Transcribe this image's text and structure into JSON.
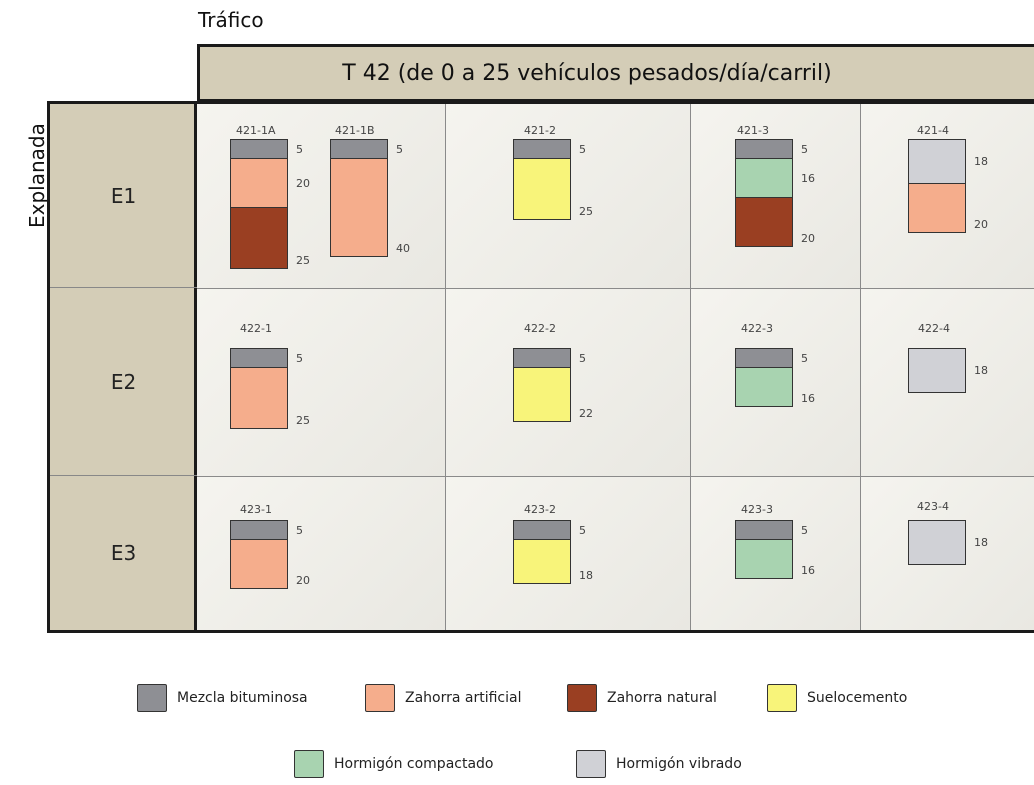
{
  "axis_labels": {
    "traffic": "Tráfico",
    "subgrade": "Explanada"
  },
  "header": "T 42 (de 0 a 25 vehículos pesados/día/carril)",
  "materials": {
    "mezcla_bituminosa": {
      "label": "Mezcla bituminosa",
      "color": "#8e8f94"
    },
    "zahorra_artificial": {
      "label": "Zahorra artificial",
      "color": "#f5ad8c"
    },
    "zahorra_natural": {
      "label": "Zahorra natural",
      "color": "#9a3f22"
    },
    "suelocemento": {
      "label": "Suelocemento",
      "color": "#f8f47a"
    },
    "hormigon_compactado": {
      "label": "Hormigón compactado",
      "color": "#a8d3b0"
    },
    "hormigon_vibrado": {
      "label": "Hormigón vibrado",
      "color": "#d0d1d6"
    }
  },
  "rows": [
    {
      "label": "E1",
      "sections": [
        {
          "code": "421-1A",
          "layers": [
            {
              "material": "mezcla_bituminosa",
              "thickness": "5"
            },
            {
              "material": "zahorra_artificial",
              "thickness": "20"
            },
            {
              "material": "zahorra_natural",
              "thickness": "25"
            }
          ]
        },
        {
          "code": "421-1B",
          "layers": [
            {
              "material": "mezcla_bituminosa",
              "thickness": "5"
            },
            {
              "material": "zahorra_artificial",
              "thickness": "40"
            }
          ]
        },
        {
          "code": "421-2",
          "layers": [
            {
              "material": "mezcla_bituminosa",
              "thickness": "5"
            },
            {
              "material": "suelocemento",
              "thickness": "25"
            }
          ]
        },
        {
          "code": "421-3",
          "layers": [
            {
              "material": "mezcla_bituminosa",
              "thickness": "5"
            },
            {
              "material": "hormigon_compactado",
              "thickness": "16"
            },
            {
              "material": "zahorra_natural",
              "thickness": "20"
            }
          ]
        },
        {
          "code": "421-4",
          "layers": [
            {
              "material": "hormigon_vibrado",
              "thickness": "18"
            },
            {
              "material": "zahorra_artificial",
              "thickness": "20"
            }
          ]
        }
      ]
    },
    {
      "label": "E2",
      "sections": [
        {
          "code": "422-1",
          "layers": [
            {
              "material": "mezcla_bituminosa",
              "thickness": "5"
            },
            {
              "material": "zahorra_artificial",
              "thickness": "25"
            }
          ]
        },
        {
          "code": "422-2",
          "layers": [
            {
              "material": "mezcla_bituminosa",
              "thickness": "5"
            },
            {
              "material": "suelocemento",
              "thickness": "22"
            }
          ]
        },
        {
          "code": "422-3",
          "layers": [
            {
              "material": "mezcla_bituminosa",
              "thickness": "5"
            },
            {
              "material": "hormigon_compactado",
              "thickness": "16"
            }
          ]
        },
        {
          "code": "422-4",
          "layers": [
            {
              "material": "hormigon_vibrado",
              "thickness": "18"
            }
          ]
        }
      ]
    },
    {
      "label": "E3",
      "sections": [
        {
          "code": "423-1",
          "layers": [
            {
              "material": "mezcla_bituminosa",
              "thickness": "5"
            },
            {
              "material": "zahorra_artificial",
              "thickness": "20"
            }
          ]
        },
        {
          "code": "423-2",
          "layers": [
            {
              "material": "mezcla_bituminosa",
              "thickness": "5"
            },
            {
              "material": "suelocemento",
              "thickness": "18"
            }
          ]
        },
        {
          "code": "423-3",
          "layers": [
            {
              "material": "mezcla_bituminosa",
              "thickness": "5"
            },
            {
              "material": "hormigon_compactado",
              "thickness": "16"
            }
          ]
        },
        {
          "code": "423-4",
          "layers": [
            {
              "material": "hormigon_vibrado",
              "thickness": "18"
            }
          ]
        }
      ]
    }
  ]
}
